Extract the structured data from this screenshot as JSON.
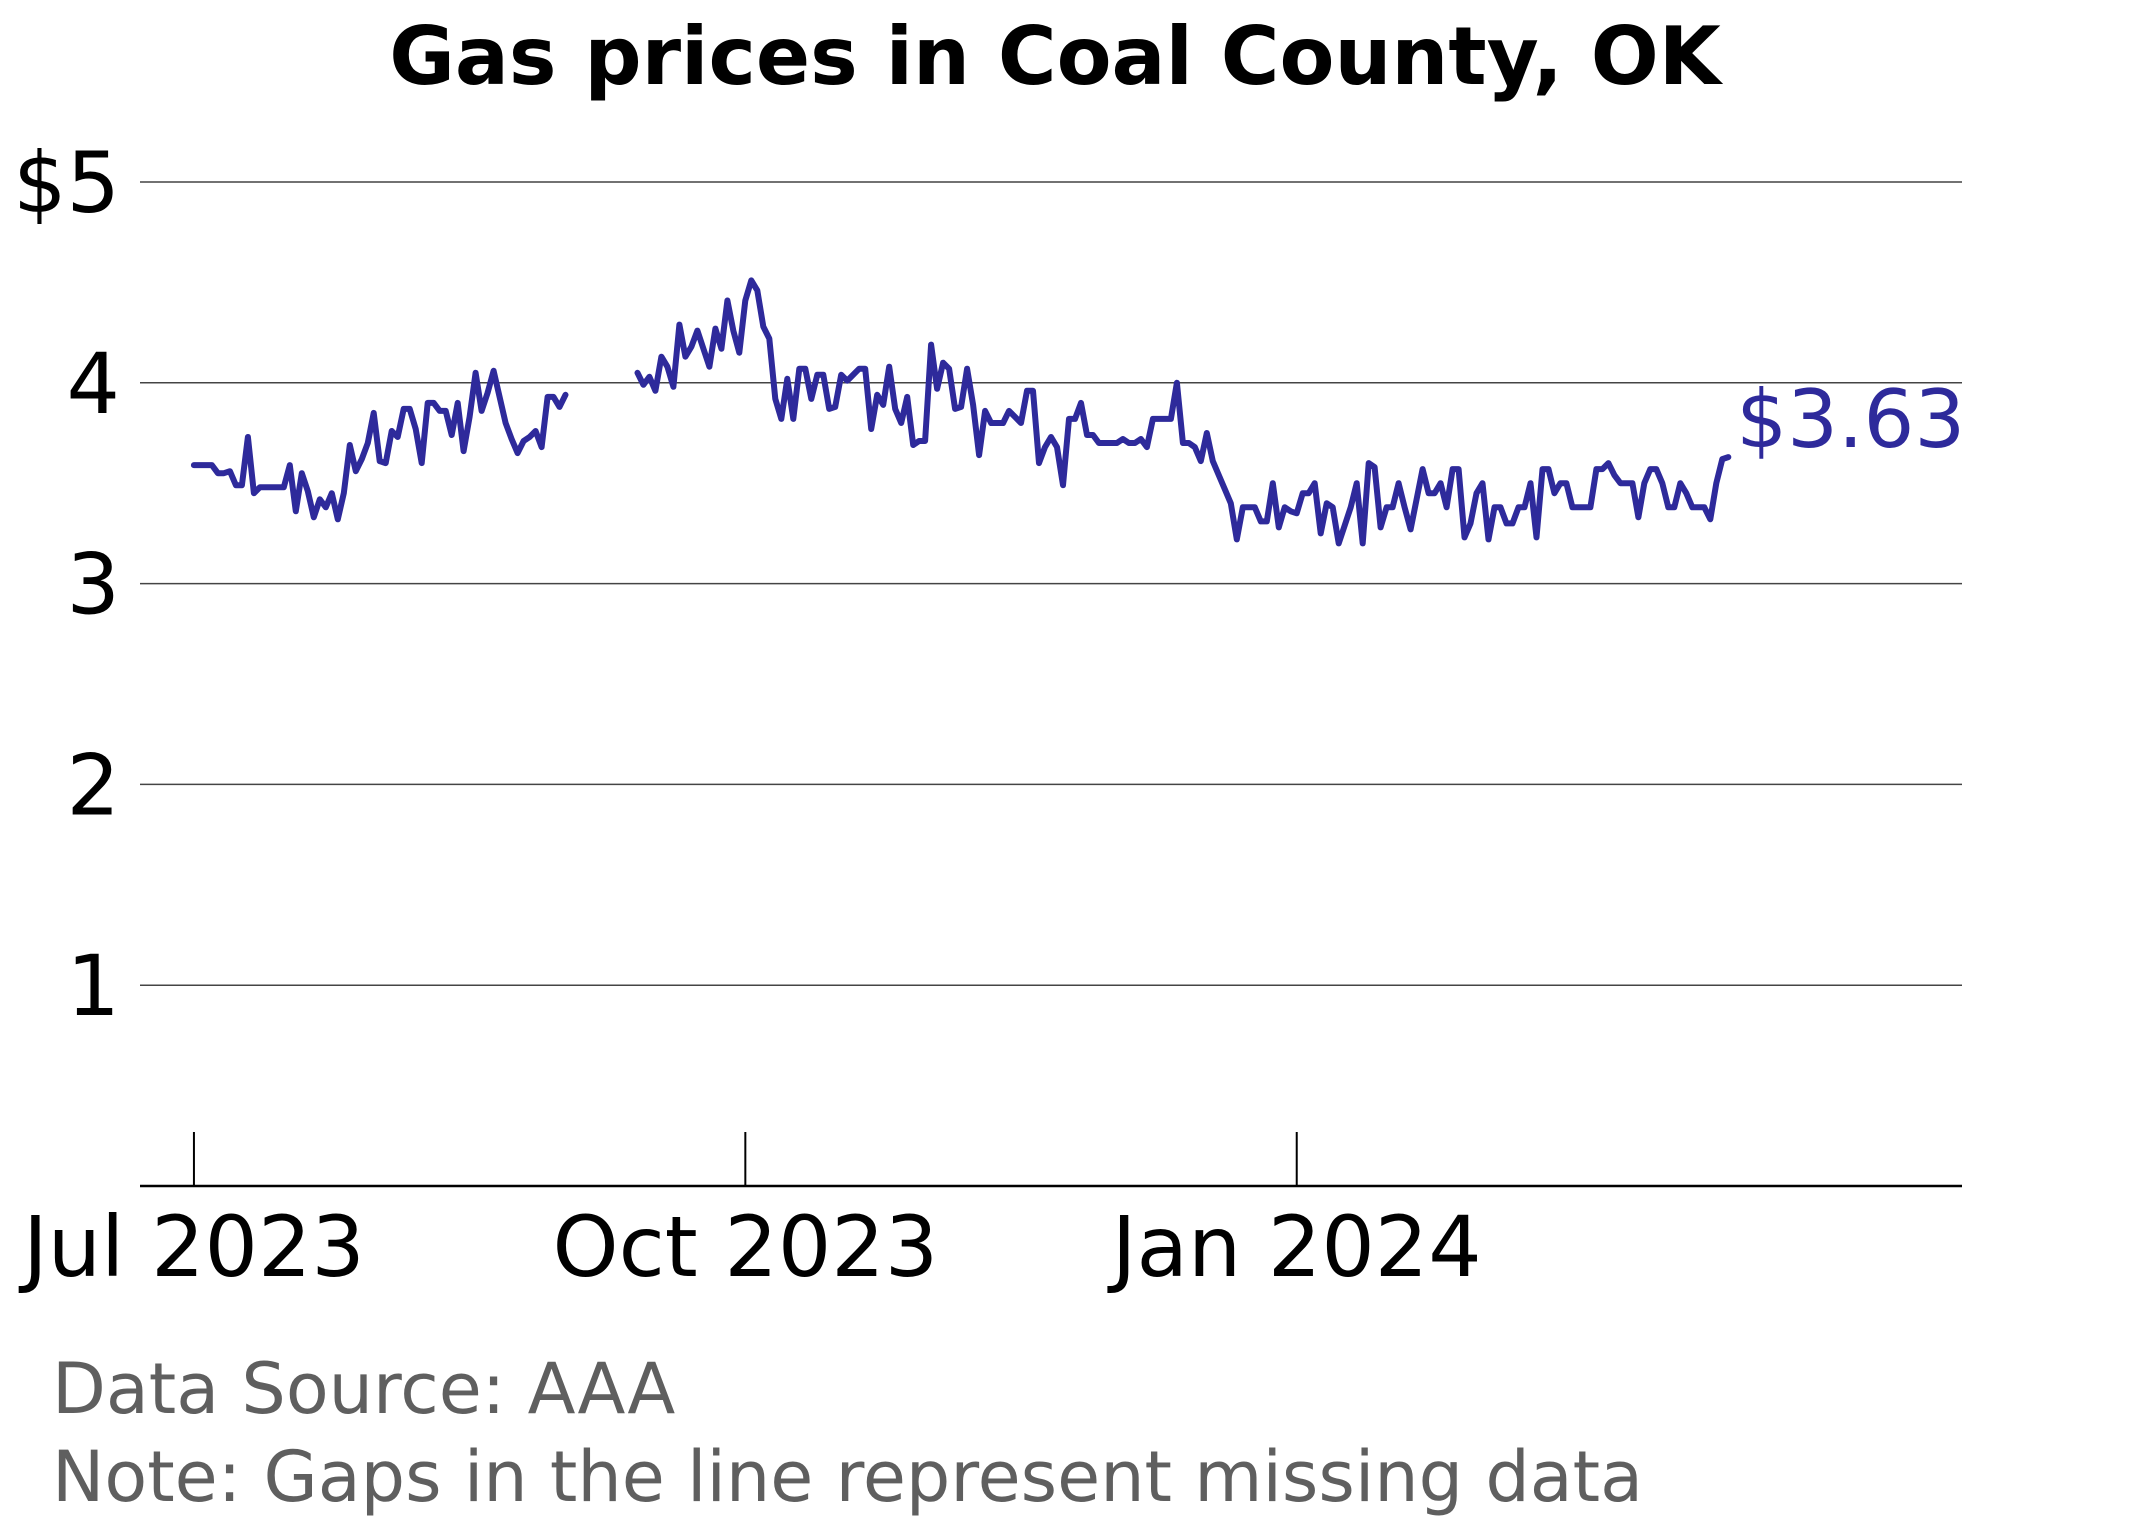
{
  "colors": {
    "line": "#2e2a9b",
    "grid": "#444444",
    "axis": "#000000",
    "footer_text": "#5f5f5f"
  },
  "chart_data": {
    "type": "line",
    "title": "Gas prices in Coal County, OK",
    "xlabel": "",
    "ylabel": "",
    "ylim": [
      0,
      5
    ],
    "xlim": [
      "2023-06-22",
      "2024-04-21"
    ],
    "grid": "horizontal",
    "y_ticks": [
      {
        "value": 1,
        "label": "1"
      },
      {
        "value": 2,
        "label": "2"
      },
      {
        "value": 3,
        "label": "3"
      },
      {
        "value": 4,
        "label": "4"
      },
      {
        "value": 5,
        "label": "$5"
      }
    ],
    "x_ticks": [
      {
        "date": "2023-07-01",
        "label": "Jul 2023"
      },
      {
        "date": "2023-10-01",
        "label": "Oct 2023"
      },
      {
        "date": "2024-01-01",
        "label": "Jan 2024"
      }
    ],
    "end_label": "$3.63",
    "series": [
      {
        "segments": [
          [
            [
              "2023-07-01",
              3.59
            ],
            [
              "2023-07-02",
              3.59
            ],
            [
              "2023-07-03",
              3.59
            ],
            [
              "2023-07-04",
              3.59
            ],
            [
              "2023-07-05",
              3.55
            ],
            [
              "2023-07-06",
              3.55
            ],
            [
              "2023-07-07",
              3.56
            ],
            [
              "2023-07-08",
              3.49
            ],
            [
              "2023-07-09",
              3.49
            ],
            [
              "2023-07-10",
              3.73
            ],
            [
              "2023-07-11",
              3.45
            ],
            [
              "2023-07-12",
              3.48
            ],
            [
              "2023-07-13",
              3.48
            ],
            [
              "2023-07-14",
              3.48
            ],
            [
              "2023-07-15",
              3.48
            ],
            [
              "2023-07-16",
              3.48
            ],
            [
              "2023-07-17",
              3.59
            ],
            [
              "2023-07-18",
              3.36
            ],
            [
              "2023-07-19",
              3.55
            ],
            [
              "2023-07-20",
              3.46
            ],
            [
              "2023-07-21",
              3.33
            ],
            [
              "2023-07-22",
              3.42
            ],
            [
              "2023-07-23",
              3.38
            ],
            [
              "2023-07-24",
              3.45
            ],
            [
              "2023-07-25",
              3.32
            ],
            [
              "2023-07-26",
              3.45
            ],
            [
              "2023-07-27",
              3.69
            ],
            [
              "2023-07-28",
              3.56
            ],
            [
              "2023-07-29",
              3.62
            ],
            [
              "2023-07-30",
              3.7
            ],
            [
              "2023-07-31",
              3.85
            ],
            [
              "2023-08-01",
              3.61
            ],
            [
              "2023-08-02",
              3.6
            ],
            [
              "2023-08-03",
              3.76
            ],
            [
              "2023-08-04",
              3.73
            ],
            [
              "2023-08-05",
              3.87
            ],
            [
              "2023-08-06",
              3.87
            ],
            [
              "2023-08-07",
              3.77
            ],
            [
              "2023-08-08",
              3.6
            ],
            [
              "2023-08-09",
              3.9
            ],
            [
              "2023-08-10",
              3.9
            ],
            [
              "2023-08-11",
              3.86
            ],
            [
              "2023-08-12",
              3.86
            ],
            [
              "2023-08-13",
              3.74
            ],
            [
              "2023-08-14",
              3.9
            ],
            [
              "2023-08-15",
              3.66
            ],
            [
              "2023-08-16",
              3.83
            ],
            [
              "2023-08-17",
              4.05
            ],
            [
              "2023-08-18",
              3.86
            ],
            [
              "2023-08-19",
              3.95
            ],
            [
              "2023-08-20",
              4.06
            ],
            [
              "2023-08-21",
              3.93
            ],
            [
              "2023-08-22",
              3.8
            ],
            [
              "2023-08-23",
              3.72
            ],
            [
              "2023-08-24",
              3.65
            ],
            [
              "2023-08-25",
              3.71
            ],
            [
              "2023-08-26",
              3.73
            ],
            [
              "2023-08-27",
              3.76
            ],
            [
              "2023-08-28",
              3.68
            ],
            [
              "2023-08-29",
              3.93
            ],
            [
              "2023-08-30",
              3.93
            ],
            [
              "2023-08-31",
              3.88
            ],
            [
              "2023-09-01",
              3.94
            ]
          ],
          [
            [
              "2023-09-13",
              4.05
            ],
            [
              "2023-09-14",
              3.99
            ],
            [
              "2023-09-15",
              4.03
            ],
            [
              "2023-09-16",
              3.96
            ],
            [
              "2023-09-17",
              4.13
            ],
            [
              "2023-09-18",
              4.08
            ],
            [
              "2023-09-19",
              3.98
            ],
            [
              "2023-09-20",
              4.29
            ],
            [
              "2023-09-21",
              4.13
            ],
            [
              "2023-09-22",
              4.18
            ],
            [
              "2023-09-23",
              4.26
            ],
            [
              "2023-09-24",
              4.17
            ],
            [
              "2023-09-25",
              4.08
            ],
            [
              "2023-09-26",
              4.27
            ],
            [
              "2023-09-27",
              4.17
            ],
            [
              "2023-09-28",
              4.41
            ],
            [
              "2023-09-29",
              4.26
            ],
            [
              "2023-09-30",
              4.15
            ],
            [
              "2023-10-01",
              4.41
            ],
            [
              "2023-10-02",
              4.51
            ],
            [
              "2023-10-03",
              4.46
            ],
            [
              "2023-10-04",
              4.28
            ],
            [
              "2023-10-05",
              4.22
            ],
            [
              "2023-10-06",
              3.92
            ],
            [
              "2023-10-07",
              3.82
            ],
            [
              "2023-10-08",
              4.02
            ],
            [
              "2023-10-09",
              3.82
            ],
            [
              "2023-10-10",
              4.07
            ],
            [
              "2023-10-11",
              4.07
            ],
            [
              "2023-10-12",
              3.92
            ],
            [
              "2023-10-13",
              4.04
            ],
            [
              "2023-10-14",
              4.04
            ],
            [
              "2023-10-15",
              3.87
            ],
            [
              "2023-10-16",
              3.88
            ],
            [
              "2023-10-17",
              4.04
            ],
            [
              "2023-10-18",
              4.01
            ],
            [
              "2023-10-19",
              4.04
            ],
            [
              "2023-10-20",
              4.07
            ],
            [
              "2023-10-21",
              4.07
            ],
            [
              "2023-10-22",
              3.77
            ],
            [
              "2023-10-23",
              3.94
            ],
            [
              "2023-10-24",
              3.89
            ],
            [
              "2023-10-25",
              4.08
            ],
            [
              "2023-10-26",
              3.87
            ],
            [
              "2023-10-27",
              3.8
            ],
            [
              "2023-10-28",
              3.93
            ],
            [
              "2023-10-29",
              3.69
            ],
            [
              "2023-10-30",
              3.71
            ],
            [
              "2023-10-31",
              3.71
            ],
            [
              "2023-11-01",
              4.19
            ],
            [
              "2023-11-02",
              3.97
            ],
            [
              "2023-11-03",
              4.1
            ],
            [
              "2023-11-04",
              4.07
            ],
            [
              "2023-11-05",
              3.87
            ],
            [
              "2023-11-06",
              3.88
            ],
            [
              "2023-11-07",
              4.07
            ],
            [
              "2023-11-08",
              3.89
            ],
            [
              "2023-11-09",
              3.64
            ],
            [
              "2023-11-10",
              3.86
            ],
            [
              "2023-11-11",
              3.8
            ],
            [
              "2023-11-12",
              3.8
            ],
            [
              "2023-11-13",
              3.8
            ],
            [
              "2023-11-14",
              3.86
            ],
            [
              "2023-11-15",
              3.83
            ],
            [
              "2023-11-16",
              3.8
            ],
            [
              "2023-11-17",
              3.96
            ],
            [
              "2023-11-18",
              3.96
            ],
            [
              "2023-11-19",
              3.6
            ],
            [
              "2023-11-20",
              3.68
            ],
            [
              "2023-11-21",
              3.73
            ],
            [
              "2023-11-22",
              3.68
            ],
            [
              "2023-11-23",
              3.49
            ],
            [
              "2023-11-24",
              3.82
            ],
            [
              "2023-11-25",
              3.82
            ],
            [
              "2023-11-26",
              3.9
            ],
            [
              "2023-11-27",
              3.74
            ],
            [
              "2023-11-28",
              3.74
            ],
            [
              "2023-11-29",
              3.7
            ],
            [
              "2023-11-30",
              3.7
            ],
            [
              "2023-12-01",
              3.7
            ],
            [
              "2023-12-02",
              3.7
            ],
            [
              "2023-12-03",
              3.72
            ],
            [
              "2023-12-04",
              3.7
            ],
            [
              "2023-12-05",
              3.7
            ],
            [
              "2023-12-06",
              3.72
            ],
            [
              "2023-12-07",
              3.68
            ],
            [
              "2023-12-08",
              3.82
            ],
            [
              "2023-12-09",
              3.82
            ],
            [
              "2023-12-10",
              3.82
            ],
            [
              "2023-12-11",
              3.82
            ],
            [
              "2023-12-12",
              4.0
            ],
            [
              "2023-12-13",
              3.7
            ],
            [
              "2023-12-14",
              3.7
            ],
            [
              "2023-12-15",
              3.68
            ],
            [
              "2023-12-16",
              3.61
            ],
            [
              "2023-12-17",
              3.75
            ],
            [
              "2023-12-18",
              3.61
            ],
            [
              "2023-12-19",
              3.54
            ],
            [
              "2023-12-20",
              3.47
            ],
            [
              "2023-12-21",
              3.4
            ],
            [
              "2023-12-22",
              3.22
            ],
            [
              "2023-12-23",
              3.38
            ],
            [
              "2023-12-24",
              3.38
            ],
            [
              "2023-12-25",
              3.38
            ],
            [
              "2023-12-26",
              3.31
            ],
            [
              "2023-12-27",
              3.31
            ],
            [
              "2023-12-28",
              3.5
            ],
            [
              "2023-12-29",
              3.28
            ],
            [
              "2023-12-30",
              3.38
            ],
            [
              "2023-12-31",
              3.36
            ],
            [
              "2024-01-01",
              3.35
            ],
            [
              "2024-01-02",
              3.45
            ],
            [
              "2024-01-03",
              3.45
            ],
            [
              "2024-01-04",
              3.5
            ],
            [
              "2024-01-05",
              3.25
            ],
            [
              "2024-01-06",
              3.4
            ],
            [
              "2024-01-07",
              3.38
            ],
            [
              "2024-01-08",
              3.2
            ],
            [
              "2024-01-09",
              3.29
            ],
            [
              "2024-01-10",
              3.38
            ],
            [
              "2024-01-11",
              3.5
            ],
            [
              "2024-01-12",
              3.2
            ],
            [
              "2024-01-13",
              3.6
            ],
            [
              "2024-01-14",
              3.58
            ],
            [
              "2024-01-15",
              3.28
            ],
            [
              "2024-01-16",
              3.38
            ],
            [
              "2024-01-17",
              3.38
            ],
            [
              "2024-01-18",
              3.5
            ],
            [
              "2024-01-19",
              3.38
            ],
            [
              "2024-01-20",
              3.27
            ],
            [
              "2024-01-21",
              3.42
            ],
            [
              "2024-01-22",
              3.57
            ],
            [
              "2024-01-23",
              3.45
            ],
            [
              "2024-01-24",
              3.45
            ],
            [
              "2024-01-25",
              3.5
            ],
            [
              "2024-01-26",
              3.38
            ],
            [
              "2024-01-27",
              3.57
            ],
            [
              "2024-01-28",
              3.57
            ],
            [
              "2024-01-29",
              3.23
            ],
            [
              "2024-01-30",
              3.3
            ],
            [
              "2024-01-31",
              3.45
            ],
            [
              "2024-02-01",
              3.5
            ],
            [
              "2024-02-02",
              3.22
            ],
            [
              "2024-02-03",
              3.38
            ],
            [
              "2024-02-04",
              3.38
            ],
            [
              "2024-02-05",
              3.3
            ],
            [
              "2024-02-06",
              3.3
            ],
            [
              "2024-02-07",
              3.38
            ],
            [
              "2024-02-08",
              3.38
            ],
            [
              "2024-02-09",
              3.5
            ],
            [
              "2024-02-10",
              3.23
            ],
            [
              "2024-02-11",
              3.57
            ],
            [
              "2024-02-12",
              3.57
            ],
            [
              "2024-02-13",
              3.45
            ],
            [
              "2024-02-14",
              3.5
            ],
            [
              "2024-02-15",
              3.5
            ],
            [
              "2024-02-16",
              3.38
            ],
            [
              "2024-02-17",
              3.38
            ],
            [
              "2024-02-18",
              3.38
            ],
            [
              "2024-02-19",
              3.38
            ],
            [
              "2024-02-20",
              3.57
            ],
            [
              "2024-02-21",
              3.57
            ],
            [
              "2024-02-22",
              3.6
            ],
            [
              "2024-02-23",
              3.54
            ],
            [
              "2024-02-24",
              3.5
            ],
            [
              "2024-02-25",
              3.5
            ],
            [
              "2024-02-26",
              3.5
            ],
            [
              "2024-02-27",
              3.33
            ],
            [
              "2024-02-28",
              3.5
            ],
            [
              "2024-02-29",
              3.57
            ],
            [
              "2024-03-01",
              3.57
            ],
            [
              "2024-03-02",
              3.5
            ],
            [
              "2024-03-03",
              3.38
            ],
            [
              "2024-03-04",
              3.38
            ],
            [
              "2024-03-05",
              3.5
            ],
            [
              "2024-03-06",
              3.45
            ],
            [
              "2024-03-07",
              3.38
            ],
            [
              "2024-03-08",
              3.38
            ],
            [
              "2024-03-09",
              3.38
            ],
            [
              "2024-03-10",
              3.32
            ],
            [
              "2024-03-11",
              3.5
            ],
            [
              "2024-03-12",
              3.62
            ],
            [
              "2024-03-13",
              3.63
            ]
          ]
        ]
      }
    ]
  },
  "footer": {
    "source": "Data Source: AAA",
    "note": "Note: Gaps in the line represent missing data"
  }
}
